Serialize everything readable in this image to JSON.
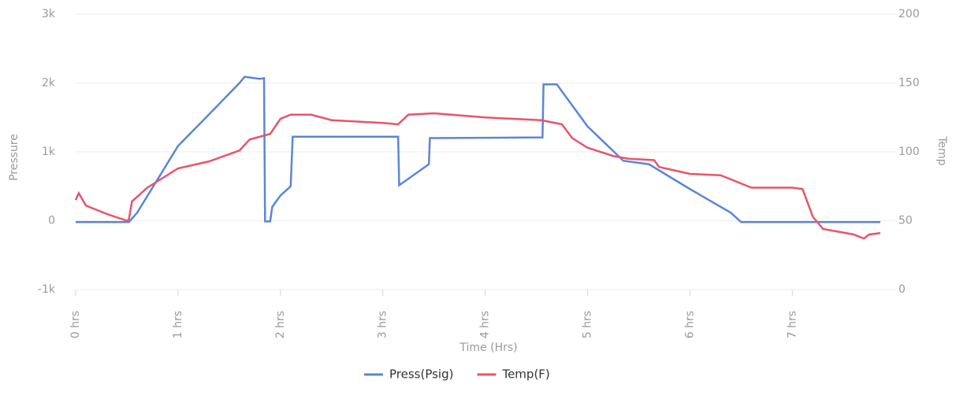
{
  "chart_data": {
    "type": "line",
    "x_label": "Time (Hrs)",
    "y_label": "Pressure",
    "y2_label": "Temp",
    "xlim": [
      0,
      7.86
    ],
    "xticks": [
      {
        "value": 0,
        "label": "0 hrs"
      },
      {
        "value": 1,
        "label": "1 hrs"
      },
      {
        "value": 2,
        "label": "2 hrs"
      },
      {
        "value": 3,
        "label": "3 hrs"
      },
      {
        "value": 4,
        "label": "4 hrs"
      },
      {
        "value": 5,
        "label": "5 hrs"
      },
      {
        "value": 6,
        "label": "6 hrs"
      },
      {
        "value": 7,
        "label": "7 hrs"
      }
    ],
    "ylim": [
      -1000,
      3000
    ],
    "yticks": [
      {
        "value": -1000,
        "label": "-1k"
      },
      0,
      {
        "value": 1000,
        "label": "1k"
      },
      {
        "value": 2000,
        "label": "2k"
      },
      {
        "value": 3000,
        "label": "3k"
      }
    ],
    "y2lim": [
      0,
      200
    ],
    "y2ticks": [
      0,
      50,
      100,
      150,
      200
    ],
    "grid": true,
    "legend": "bottom",
    "series": [
      {
        "name": "Press(Psig)",
        "color": "#5b86d6",
        "x": [
          0,
          0.52,
          0.6,
          1.0,
          1.3,
          1.6,
          1.65,
          1.8,
          1.84,
          1.85,
          1.9,
          1.92,
          2.0,
          2.1,
          2.12,
          3.15,
          3.16,
          3.45,
          3.46,
          4.56,
          4.57,
          4.7,
          5.0,
          5.35,
          5.6,
          6.0,
          6.4,
          6.5,
          7.86
        ],
        "values": [
          -20,
          -20,
          115,
          1085,
          1540,
          2000,
          2090,
          2060,
          2070,
          -10,
          -10,
          200,
          365,
          500,
          1220,
          1220,
          515,
          820,
          1200,
          1210,
          1980,
          1980,
          1370,
          870,
          820,
          460,
          115,
          -20,
          -20
        ]
      },
      {
        "name": "Temp(F)",
        "color": "#e8546a",
        "axis": "y2",
        "x": [
          0,
          0.03,
          0.1,
          0.3,
          0.5,
          0.52,
          0.55,
          0.7,
          1.0,
          1.3,
          1.6,
          1.7,
          1.9,
          2.0,
          2.1,
          2.3,
          2.5,
          3.0,
          3.15,
          3.25,
          3.5,
          4.0,
          4.55,
          4.75,
          4.85,
          5.0,
          5.25,
          5.4,
          5.65,
          5.7,
          6.0,
          6.3,
          6.5,
          6.6,
          7.0,
          7.1,
          7.2,
          7.3,
          7.6,
          7.7,
          7.75,
          7.86
        ],
        "values": [
          65,
          70,
          61,
          55,
          50,
          51,
          64,
          74,
          88,
          93,
          101,
          109,
          113,
          124,
          127,
          127,
          123,
          121,
          120,
          127,
          128,
          125,
          123,
          120,
          110,
          103,
          97,
          95,
          94,
          89,
          84,
          83,
          77,
          74,
          74,
          73,
          53,
          44,
          40,
          37,
          40,
          41
        ]
      }
    ]
  }
}
